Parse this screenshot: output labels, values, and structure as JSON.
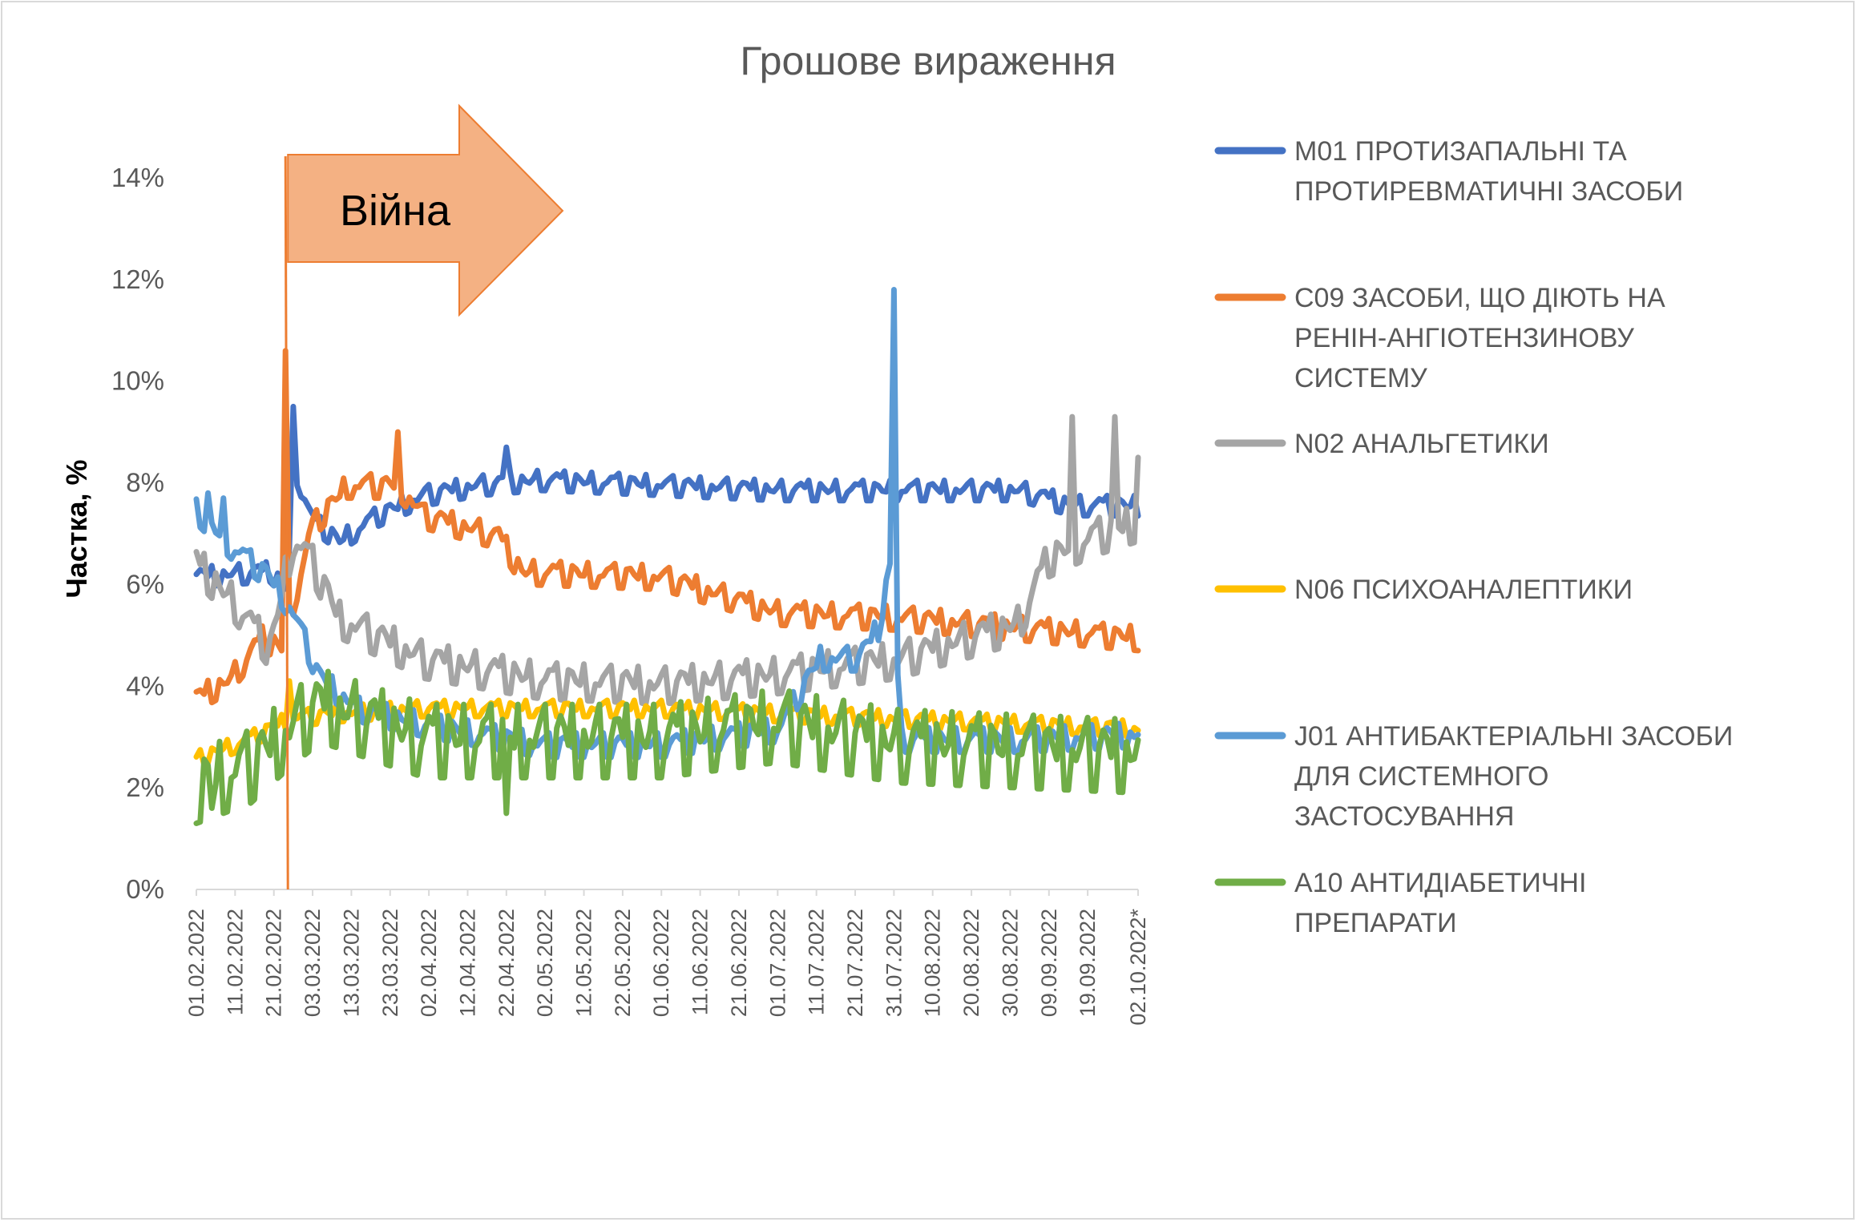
{
  "chart_data": {
    "type": "line",
    "title": "Грошове вираження",
    "ylabel": "Частка, %",
    "xlabel": "",
    "ylim": [
      0,
      14
    ],
    "yticks": [
      "0%",
      "2%",
      "4%",
      "6%",
      "8%",
      "10%",
      "12%",
      "14%"
    ],
    "x_start": "01.02.2022",
    "x_end": "02.10.2022",
    "x_ticks": [
      "01.02.2022",
      "11.02.2022",
      "21.02.2022",
      "03.03.2022",
      "13.03.2022",
      "23.03.2022",
      "02.04.2022",
      "12.04.2022",
      "22.04.2022",
      "02.05.2022",
      "12.05.2022",
      "22.05.2022",
      "01.06.2022",
      "11.06.2022",
      "21.06.2022",
      "01.07.2022",
      "11.07.2022",
      "21.07.2022",
      "31.07.2022",
      "10.08.2022",
      "20.08.2022",
      "30.08.2022",
      "09.09.2022",
      "19.09.2022",
      "02.10.2022*"
    ],
    "grid": false,
    "legend_position": "right",
    "annotation": {
      "label": "Війна",
      "date": "24.02.2022",
      "color": "#ED7D31",
      "fill": "#F4B183"
    },
    "series": [
      {
        "name": "M01 ПРОТИЗАПАЛЬНІ ТА ПРОТИРЕВМАТИЧНІ ЗАСОБИ",
        "color": "#4472C4",
        "keypoints": [
          [
            "01.02.2022",
            6.2
          ],
          [
            "20.02.2022",
            6.3
          ],
          [
            "24.02.2022",
            6.0
          ],
          [
            "27.02.2022",
            8.2
          ],
          [
            "03.03.2022",
            7.3
          ],
          [
            "10.03.2022",
            6.9
          ],
          [
            "20.03.2022",
            7.4
          ],
          [
            "01.04.2022",
            7.8
          ],
          [
            "15.04.2022",
            8.0
          ],
          [
            "01.05.2022",
            8.1
          ],
          [
            "01.06.2022",
            8.0
          ],
          [
            "01.07.2022",
            7.9
          ],
          [
            "01.08.2022",
            7.9
          ],
          [
            "01.09.2022",
            7.9
          ],
          [
            "15.09.2022",
            7.6
          ],
          [
            "02.10.2022",
            7.6
          ]
        ],
        "amp": 0.25,
        "spikes": [
          [
            "26.02.2022",
            9.5
          ],
          [
            "22.04.2022",
            8.7
          ]
        ]
      },
      {
        "name": "C09 ЗАСОБИ, ЩО ДІЮТЬ НА РЕНІН-АНГІОТЕНЗИНОВУ СИСТЕМУ",
        "color": "#ED7D31",
        "keypoints": [
          [
            "01.02.2022",
            3.8
          ],
          [
            "10.02.2022",
            4.2
          ],
          [
            "18.02.2022",
            5.0
          ],
          [
            "23.02.2022",
            4.8
          ],
          [
            "03.03.2022",
            7.2
          ],
          [
            "12.03.2022",
            8.0
          ],
          [
            "25.03.2022",
            8.0
          ],
          [
            "01.04.2022",
            7.4
          ],
          [
            "20.04.2022",
            7.0
          ],
          [
            "26.04.2022",
            6.3
          ],
          [
            "01.06.2022",
            6.2
          ],
          [
            "01.07.2022",
            5.5
          ],
          [
            "01.08.2022",
            5.4
          ],
          [
            "01.09.2022",
            5.2
          ],
          [
            "02.10.2022",
            5.0
          ]
        ],
        "amp": 0.3,
        "spikes": [
          [
            "24.02.2022",
            10.6
          ],
          [
            "25.03.2022",
            9.0
          ]
        ]
      },
      {
        "name": "N02 АНАЛЬГЕТИКИ",
        "color": "#A5A5A5",
        "keypoints": [
          [
            "01.02.2022",
            6.5
          ],
          [
            "11.02.2022",
            5.7
          ],
          [
            "20.02.2022",
            4.8
          ],
          [
            "26.02.2022",
            7.0
          ],
          [
            "03.03.2022",
            6.5
          ],
          [
            "10.03.2022",
            5.4
          ],
          [
            "01.04.2022",
            4.6
          ],
          [
            "01.05.2022",
            4.2
          ],
          [
            "01.06.2022",
            4.1
          ],
          [
            "01.07.2022",
            4.3
          ],
          [
            "01.08.2022",
            4.6
          ],
          [
            "01.09.2022",
            5.3
          ],
          [
            "09.09.2022",
            6.6
          ],
          [
            "20.09.2022",
            7.0
          ],
          [
            "02.10.2022",
            7.3
          ]
        ],
        "amp": 0.45,
        "spikes": [
          [
            "15.09.2022",
            9.3
          ],
          [
            "26.09.2022",
            9.3
          ],
          [
            "02.10.2022",
            8.5
          ]
        ]
      },
      {
        "name": "N06 ПСИХОАНАЛЕПТИКИ",
        "color": "#FFC000",
        "keypoints": [
          [
            "01.02.2022",
            2.6
          ],
          [
            "15.02.2022",
            3.0
          ],
          [
            "25.02.2022",
            3.4
          ],
          [
            "10.03.2022",
            3.5
          ],
          [
            "01.04.2022",
            3.6
          ],
          [
            "01.05.2022",
            3.6
          ],
          [
            "01.06.2022",
            3.6
          ],
          [
            "01.07.2022",
            3.5
          ],
          [
            "01.08.2022",
            3.4
          ],
          [
            "01.09.2022",
            3.3
          ],
          [
            "02.10.2022",
            3.2
          ]
        ],
        "amp": 0.2,
        "spikes": [
          [
            "25.02.2022",
            4.1
          ]
        ]
      },
      {
        "name": "J01 АНТИБАКТЕРІАЛЬНІ ЗАСОБИ ДЛЯ СИСТЕМНОГО ЗАСТОСУВАННЯ",
        "color": "#5B9BD5",
        "keypoints": [
          [
            "01.02.2022",
            7.5
          ],
          [
            "10.02.2022",
            6.8
          ],
          [
            "20.02.2022",
            6.2
          ],
          [
            "26.02.2022",
            5.5
          ],
          [
            "05.03.2022",
            4.2
          ],
          [
            "15.03.2022",
            3.6
          ],
          [
            "01.04.2022",
            3.3
          ],
          [
            "01.05.2022",
            2.9
          ],
          [
            "01.06.2022",
            2.9
          ],
          [
            "01.07.2022",
            3.2
          ],
          [
            "12.07.2022",
            4.6
          ],
          [
            "22.07.2022",
            4.6
          ],
          [
            "27.07.2022",
            5.2
          ],
          [
            "30.07.2022",
            6.5
          ],
          [
            "02.08.2022",
            3.0
          ],
          [
            "01.09.2022",
            3.0
          ],
          [
            "02.10.2022",
            3.1
          ]
        ],
        "amp": 0.3,
        "spikes": [
          [
            "31.07.2022",
            11.8
          ],
          [
            "04.02.2022",
            7.8
          ],
          [
            "08.02.2022",
            7.7
          ]
        ]
      },
      {
        "name": "A10 АНТИДІАБЕТИЧНІ ПРЕПАРАТИ",
        "color": "#70AD47",
        "keypoints": [
          [
            "01.02.2022",
            2.2
          ],
          [
            "15.02.2022",
            2.6
          ],
          [
            "25.02.2022",
            3.3
          ],
          [
            "05.03.2022",
            3.8
          ],
          [
            "01.04.2022",
            3.1
          ],
          [
            "01.05.2022",
            3.1
          ],
          [
            "01.06.2022",
            3.1
          ],
          [
            "01.07.2022",
            3.4
          ],
          [
            "01.08.2022",
            3.0
          ],
          [
            "01.09.2022",
            2.9
          ],
          [
            "02.10.2022",
            2.8
          ]
        ],
        "amp": 0.9,
        "spikes": [
          [
            "22.04.2022",
            1.5
          ],
          [
            "05.02.2022",
            1.6
          ]
        ]
      }
    ]
  },
  "legend": {
    "items": [
      {
        "lines": [
          "M01 ПРОТИЗАПАЛЬНІ ТА",
          "ПРОТИРЕВМАТИЧНІ ЗАСОБИ"
        ]
      },
      {
        "lines": [
          "C09 ЗАСОБИ, ЩО ДІЮТЬ НА",
          "РЕНІН-АНГІОТЕНЗИНОВУ",
          "СИСТЕМУ"
        ]
      },
      {
        "lines": [
          "N02 АНАЛЬГЕТИКИ"
        ]
      },
      {
        "lines": [
          "N06 ПСИХОАНАЛЕПТИКИ"
        ]
      },
      {
        "lines": [
          "J01 АНТИБАКТЕРІАЛЬНІ ЗАСОБИ",
          "ДЛЯ СИСТЕМНОГО",
          "ЗАСТОСУВАННЯ"
        ]
      },
      {
        "lines": [
          "A10 АНТИДІАБЕТИЧНІ",
          "ПРЕПАРАТИ"
        ]
      }
    ]
  }
}
